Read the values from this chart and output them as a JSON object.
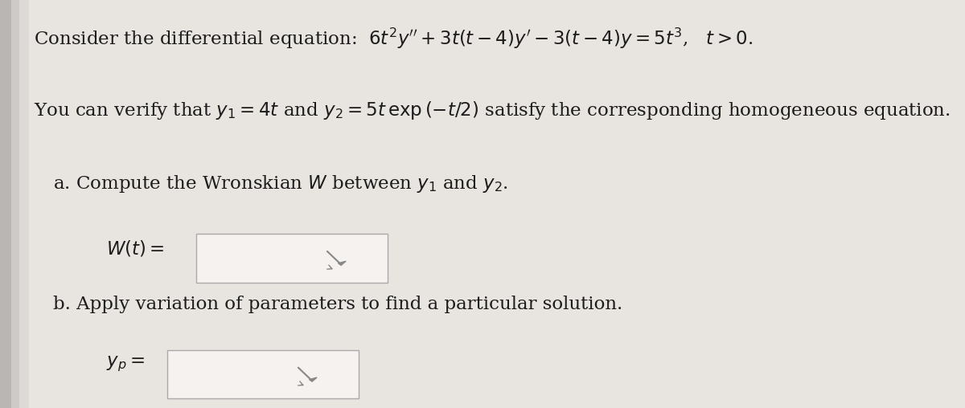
{
  "bg_color": "#e8e4e0",
  "text_color": "#1c1c1c",
  "line1a": "Consider the differential equation:  ",
  "line1b": "$6t^2y'' + 3t(t-4)y' - 3(t-4)y = 5t^3$,  $t > 0$.",
  "line2a": "You can verify that $y_1 = 4t$ and $y_2 = 5t\\,\\mathrm{exp}\\,(-t/2)$ satisfy the corresponding homogeneous equation.",
  "line3": "a. Compute the Wronskian $W$ between $y_1$ and $y_2$.",
  "label_W": "$W(t) = $",
  "line4": "b. Apply variation of parameters to find a particular solution.",
  "label_Yp": "$y_p = $",
  "box_fill": "#f5f2ef",
  "box_edge": "#aaaaaa",
  "pencil_color": "#888888",
  "left_strip_color": "#c8c4c0",
  "left_strip_highlight": "#e0dcd8"
}
